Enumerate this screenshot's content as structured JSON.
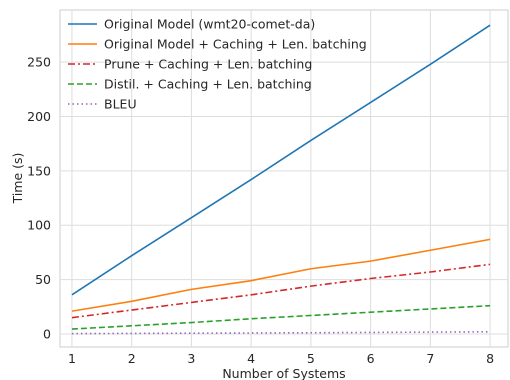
{
  "chart_data": {
    "type": "line",
    "xlabel": "Number of Systems",
    "ylabel": "Time (s)",
    "x": [
      1,
      2,
      3,
      4,
      5,
      6,
      7,
      8
    ],
    "xlim": [
      0.8,
      8.3
    ],
    "ylim": [
      -12,
      298
    ],
    "xticks": [
      1,
      2,
      3,
      4,
      5,
      6,
      7,
      8
    ],
    "yticks": [
      0,
      50,
      100,
      150,
      200,
      250
    ],
    "grid": true,
    "legend_position": "top-left",
    "series": [
      {
        "name": "Original Model (wmt20-comet-da)",
        "values": [
          36,
          72,
          107,
          142,
          178,
          213,
          248,
          284
        ],
        "color": "#1f77b4",
        "dash": "solid"
      },
      {
        "name": "Original Model + Caching + Len. batching",
        "values": [
          21,
          30,
          41,
          49,
          60,
          67,
          77,
          87
        ],
        "color": "#ff7f0e",
        "dash": "solid"
      },
      {
        "name": "Prune + Caching + Len. batching",
        "values": [
          15,
          22,
          29,
          36,
          44,
          51,
          57,
          64
        ],
        "color": "#d62728",
        "dash": "dashdot"
      },
      {
        "name": "Distil. + Caching + Len. batching",
        "values": [
          4.5,
          7.5,
          10.5,
          14,
          17,
          20,
          23,
          26
        ],
        "color": "#2ca02c",
        "dash": "dashed"
      },
      {
        "name": "BLEU",
        "values": [
          0.3,
          0.5,
          0.7,
          0.9,
          1.1,
          1.4,
          1.7,
          2.0
        ],
        "color": "#9467bd",
        "dash": "dotted"
      }
    ]
  }
}
